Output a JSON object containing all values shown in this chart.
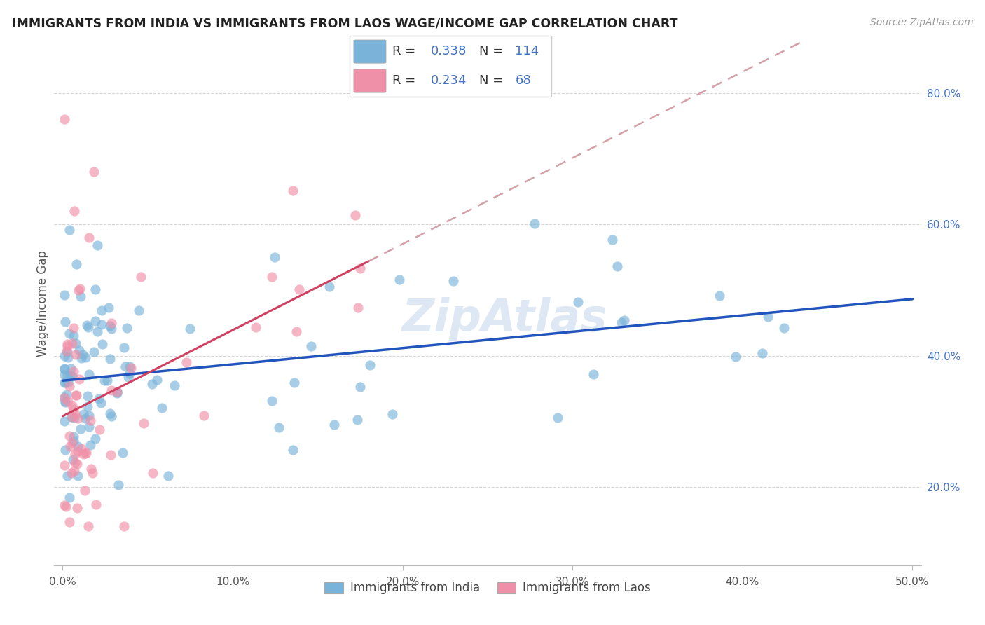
{
  "title": "IMMIGRANTS FROM INDIA VS IMMIGRANTS FROM LAOS WAGE/INCOME GAP CORRELATION CHART",
  "source": "Source: ZipAtlas.com",
  "ylabel": "Wage/Income Gap",
  "legend_india": {
    "R": "0.338",
    "N": "114"
  },
  "legend_laos": {
    "R": "0.234",
    "N": "68"
  },
  "india_color": "#7ab3d9",
  "laos_color": "#f090a8",
  "india_line_color": "#2255bb",
  "laos_line_color": "#d04060",
  "laos_dash_color": "#d4a0a8",
  "right_tick_color": "#4472c4",
  "watermark": "ZipAtlas",
  "background_color": "#ffffff",
  "grid_color": "#cccccc",
  "xlim": [
    -0.005,
    0.505
  ],
  "ylim": [
    0.08,
    0.88
  ],
  "x_tick_vals": [
    0.0,
    0.1,
    0.2,
    0.3,
    0.4,
    0.5
  ],
  "y_tick_vals": [
    0.2,
    0.4,
    0.6,
    0.8
  ],
  "india_seed": 17,
  "laos_seed": 7
}
